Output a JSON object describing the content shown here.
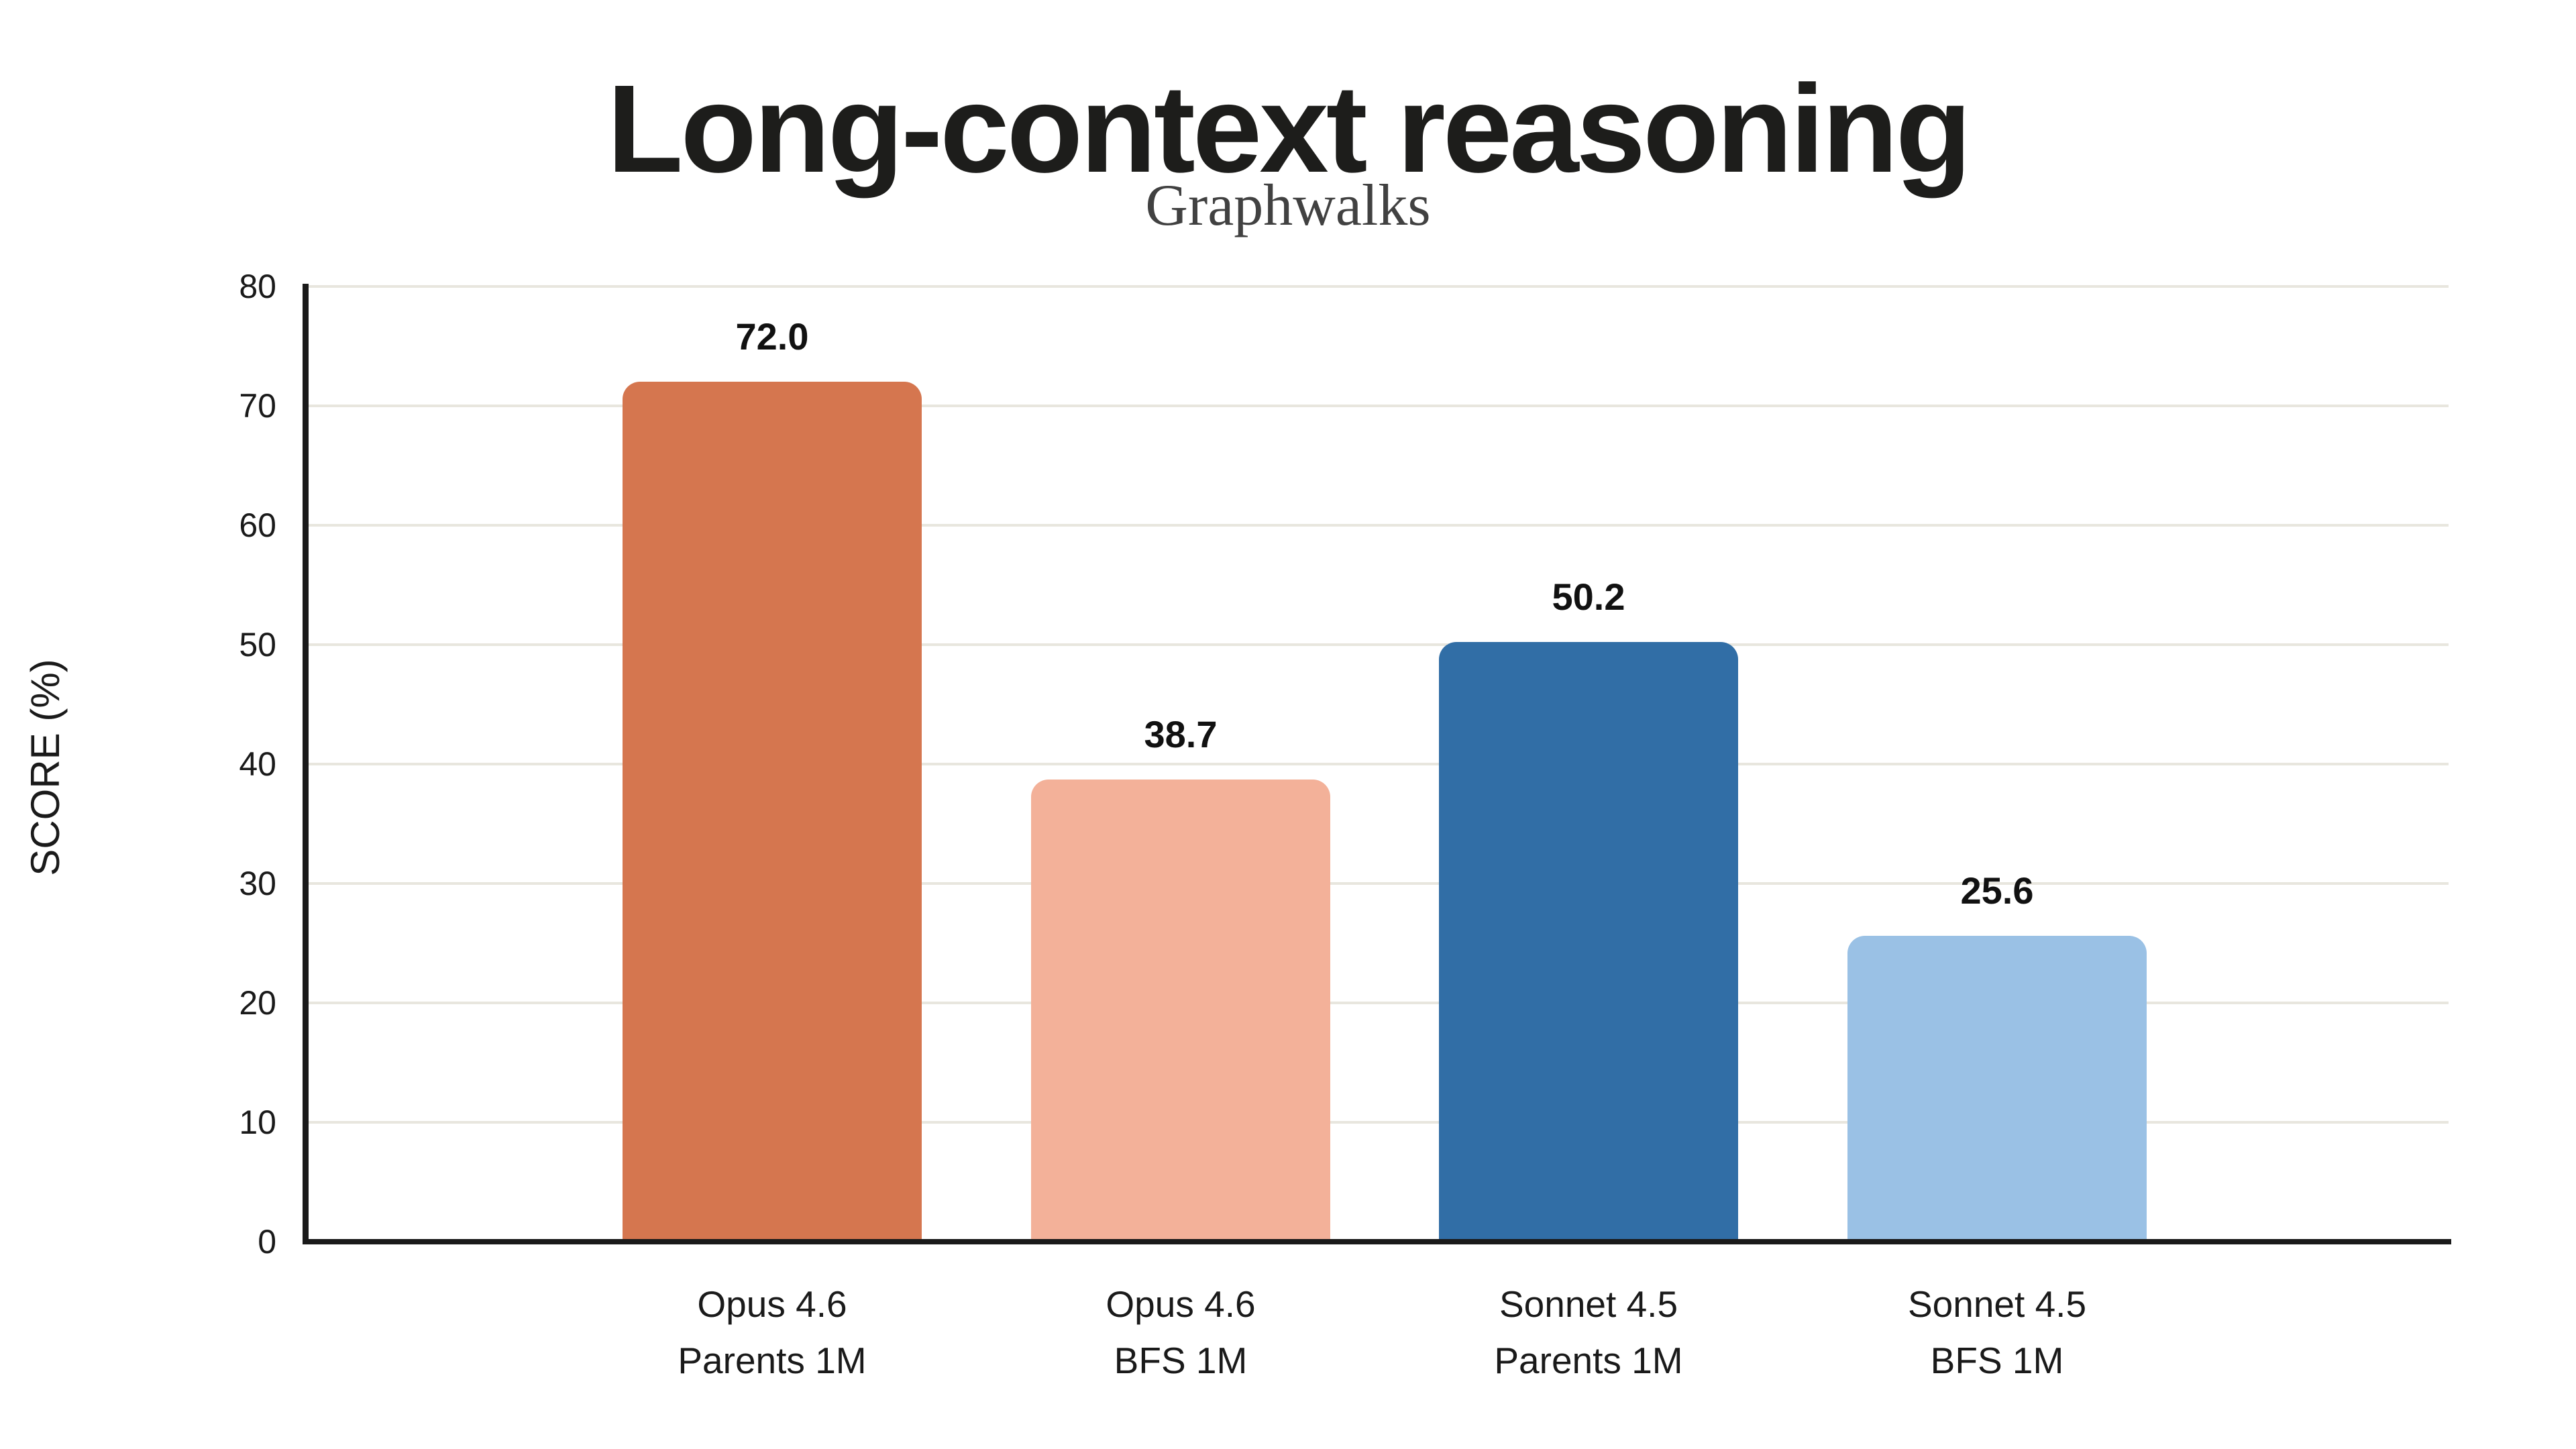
{
  "chart_data": {
    "type": "bar",
    "title": "Long-context reasoning",
    "subtitle": "Graphwalks",
    "ylabel": "SCORE (%)",
    "xlabel": "",
    "ylim": [
      0,
      80
    ],
    "yticks": [
      0,
      10,
      20,
      30,
      40,
      50,
      60,
      70,
      80
    ],
    "grid": "horizontal-light",
    "legend_position": "none",
    "categories": [
      {
        "line1": "Opus 4.6",
        "line2": "Parents 1M"
      },
      {
        "line1": "Opus 4.6",
        "line2": "BFS 1M"
      },
      {
        "line1": "Sonnet 4.5",
        "line2": "Parents 1M"
      },
      {
        "line1": "Sonnet 4.5",
        "line2": "BFS 1M"
      }
    ],
    "values": [
      72.0,
      38.7,
      50.2,
      25.6
    ],
    "value_labels": [
      "72.0",
      "38.7",
      "50.2",
      "25.6"
    ],
    "bar_colors": [
      "#D5764F",
      "#F3B199",
      "#316EA6",
      "#9AC1E5"
    ]
  },
  "colors": {
    "background": "#FFFFFF",
    "axis": "#1A1A1A",
    "gridline": "#E8E6DE",
    "title_text": "#1D1D1B",
    "subtitle_text": "#414141",
    "label_text": "#1A1A1A",
    "value_text": "#111111"
  }
}
